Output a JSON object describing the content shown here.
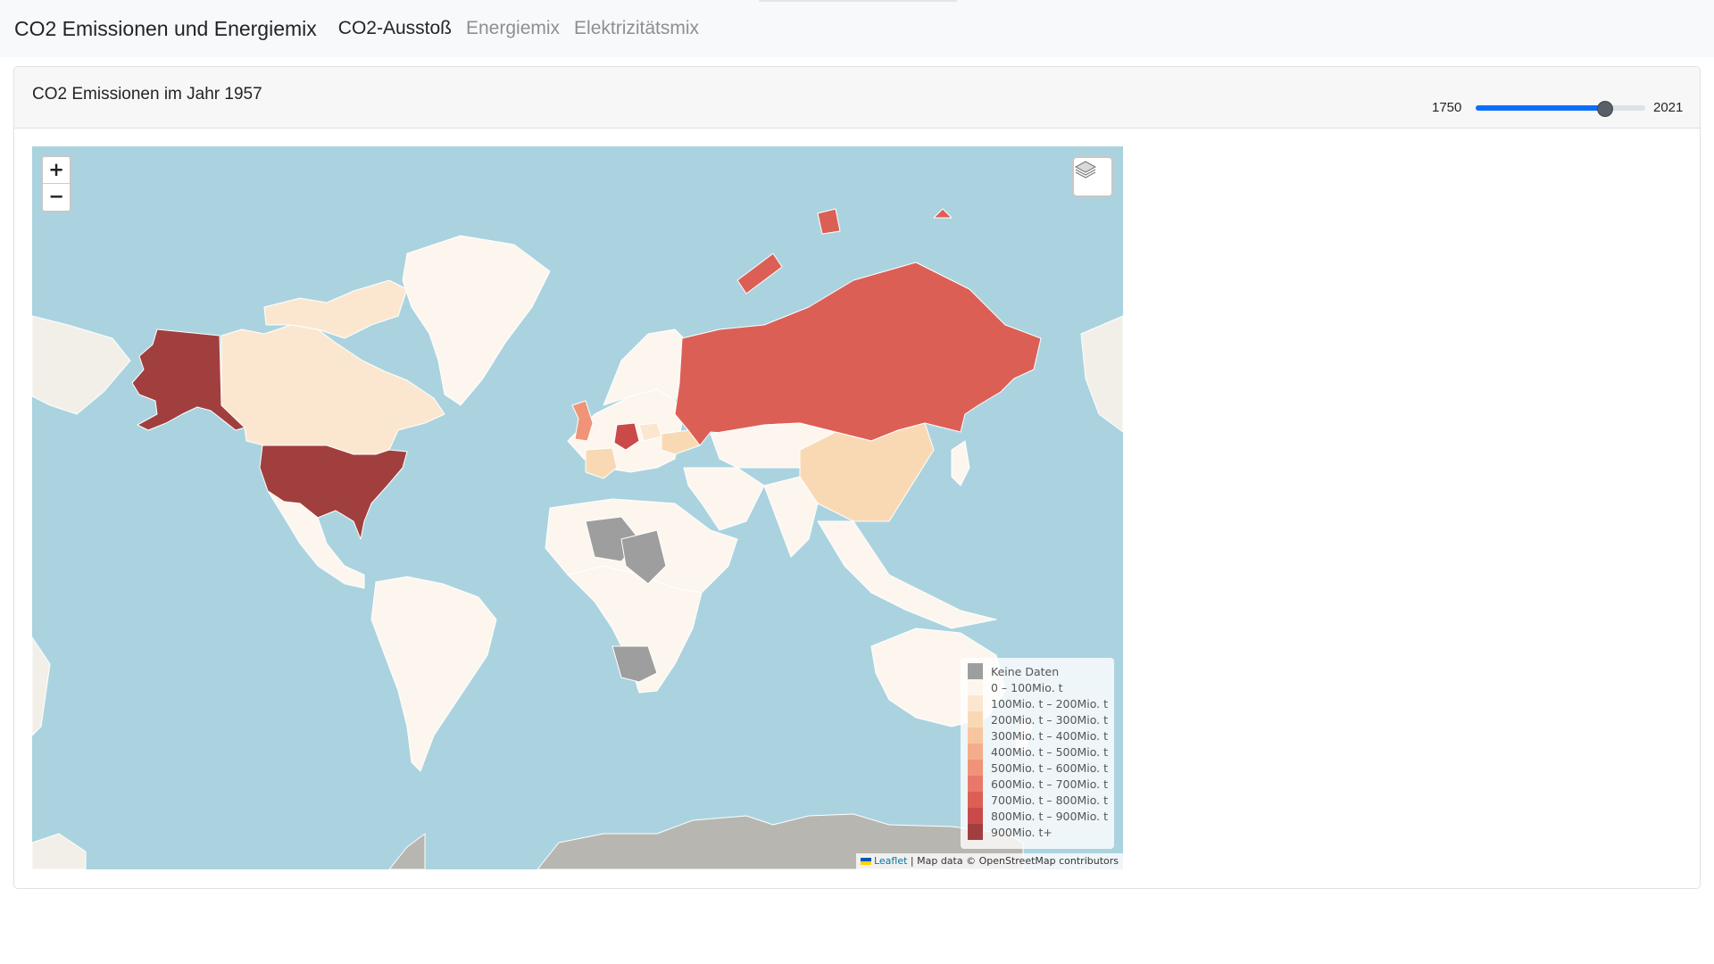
{
  "navbar": {
    "brand": "CO2 Emissionen und Energiemix",
    "links": [
      {
        "label": "CO2-Ausstoß",
        "active": true
      },
      {
        "label": "Energiemix",
        "active": false
      },
      {
        "label": "Elektrizitätsmix",
        "active": false
      }
    ]
  },
  "card": {
    "title": "CO2 Emissionen im Jahr 1957",
    "slider": {
      "min": "1750",
      "max": "2021",
      "value": 1957
    }
  },
  "map": {
    "zoom_in": "+",
    "zoom_out": "−",
    "layers_icon": "layers-icon",
    "legend": [
      {
        "label": "Keine Daten",
        "color": "#9e9e9e"
      },
      {
        "label": "0 – 100Mio. t",
        "color": "#fdf6ee"
      },
      {
        "label": "100Mio. t – 200Mio. t",
        "color": "#fbe7d0"
      },
      {
        "label": "200Mio. t – 300Mio. t",
        "color": "#f9d9b4"
      },
      {
        "label": "300Mio. t – 400Mio. t",
        "color": "#f7c6a0"
      },
      {
        "label": "400Mio. t – 500Mio. t",
        "color": "#f4ad8b"
      },
      {
        "label": "500Mio. t – 600Mio. t",
        "color": "#ef9478"
      },
      {
        "label": "600Mio. t – 700Mio. t",
        "color": "#e8796a"
      },
      {
        "label": "700Mio. t – 800Mio. t",
        "color": "#dc5f56"
      },
      {
        "label": "800Mio. t – 900Mio. t",
        "color": "#c94a48"
      },
      {
        "label": "900Mio. t+",
        "color": "#a13f3f"
      }
    ],
    "attribution": {
      "leaflet": "Leaflet",
      "separator": " | ",
      "text": "Map data © OpenStreetMap contributors"
    }
  }
}
